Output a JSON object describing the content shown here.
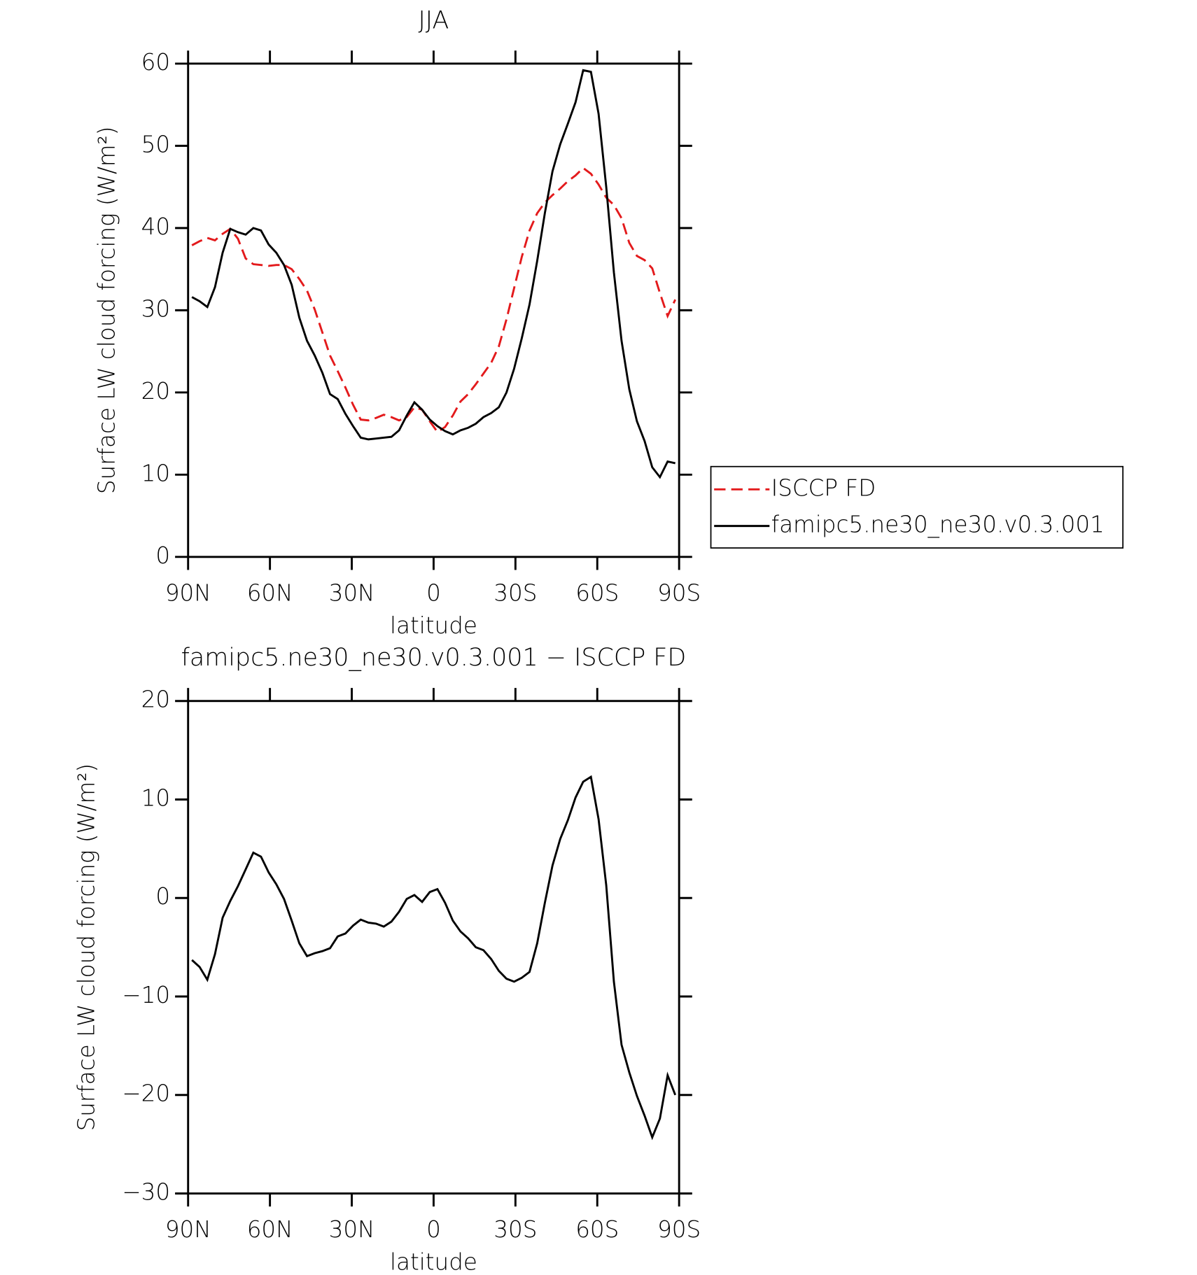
{
  "chart_data": [
    {
      "type": "line",
      "title": "JJA",
      "xlabel": "latitude",
      "ylabel": "Surface LW cloud forcing (W/m²)",
      "x": [
        88.59,
        85.78,
        82.97,
        80.16,
        77.34,
        74.53,
        71.72,
        68.91,
        66.09,
        63.28,
        60.47,
        57.66,
        54.84,
        52.03,
        49.22,
        46.41,
        43.59,
        40.78,
        37.97,
        35.16,
        32.34,
        29.53,
        26.72,
        23.91,
        21.09,
        18.28,
        15.47,
        12.66,
        9.84,
        7.03,
        4.22,
        1.41,
        -1.41,
        -4.22,
        -7.03,
        -9.84,
        -12.66,
        -15.47,
        -18.28,
        -21.09,
        -23.91,
        -26.72,
        -29.53,
        -32.34,
        -35.16,
        -37.97,
        -40.78,
        -43.59,
        -46.41,
        -49.22,
        -52.03,
        -54.84,
        -57.66,
        -60.47,
        -63.28,
        -66.09,
        -68.91,
        -71.72,
        -74.53,
        -77.34,
        -80.16,
        -82.97,
        -85.78,
        -88.59
      ],
      "series": [
        {
          "name": "ISCCP FD",
          "color": "#e31a1c",
          "dashed": true,
          "values": [
            37.9,
            38.4,
            38.8,
            38.5,
            39.3,
            39.9,
            38.7,
            36.3,
            35.6,
            35.5,
            35.4,
            35.5,
            35.5,
            35.0,
            33.8,
            32.4,
            30.1,
            27.3,
            24.5,
            22.6,
            20.6,
            18.5,
            16.7,
            16.6,
            16.9,
            17.3,
            17.0,
            16.6,
            17.0,
            18.2,
            17.9,
            16.5,
            15.2,
            15.8,
            17.2,
            18.9,
            19.8,
            21.0,
            22.3,
            23.6,
            25.6,
            28.9,
            32.7,
            36.5,
            39.7,
            41.8,
            43.1,
            44.0,
            44.8,
            45.7,
            46.4,
            47.3,
            46.6,
            45.3,
            43.7,
            42.8,
            41.2,
            38.2,
            36.6,
            36.1,
            35.1,
            32.1,
            29.3,
            31.3
          ]
        },
        {
          "name": "famipc5.ne30_ne30.v0.3.001",
          "color": "#000000",
          "dashed": false,
          "values": [
            31.6,
            31.1,
            30.4,
            32.8,
            37.0,
            39.9,
            39.5,
            39.2,
            40.0,
            39.7,
            38.0,
            37.0,
            35.5,
            33.1,
            29.1,
            26.3,
            24.5,
            22.4,
            19.8,
            19.2,
            17.4,
            15.9,
            14.5,
            14.3,
            14.4,
            14.5,
            14.6,
            15.4,
            17.2,
            18.8,
            17.9,
            16.7,
            15.9,
            15.3,
            14.9,
            15.4,
            15.7,
            16.2,
            17.0,
            17.5,
            18.2,
            20.0,
            22.9,
            26.6,
            30.7,
            36.0,
            41.8,
            46.9,
            50.2,
            52.7,
            55.3,
            59.2,
            59.0,
            53.9,
            45.0,
            34.6,
            26.3,
            20.4,
            16.5,
            14.1,
            10.9,
            9.7,
            11.6,
            11.4
          ]
        }
      ],
      "xlim": [
        90,
        -90
      ],
      "xticks": [
        {
          "value": 90,
          "label": "90N"
        },
        {
          "value": 60,
          "label": "60N"
        },
        {
          "value": 30,
          "label": "30N"
        },
        0,
        {
          "value": -30,
          "label": "30S"
        },
        {
          "value": -60,
          "label": "60S"
        },
        {
          "value": -90,
          "label": "90S"
        }
      ],
      "ylim": [
        0,
        60
      ],
      "yticks": [
        0,
        10,
        20,
        30,
        40,
        50,
        60
      ],
      "legend": "right"
    },
    {
      "type": "line",
      "title": "famipc5.ne30_ne30.v0.3.001 − ISCCP FD",
      "xlabel": "latitude",
      "ylabel": "Surface LW cloud forcing (W/m²)",
      "x": [
        88.59,
        85.78,
        82.97,
        80.16,
        77.34,
        74.53,
        71.72,
        68.91,
        66.09,
        63.28,
        60.47,
        57.66,
        54.84,
        52.03,
        49.22,
        46.41,
        43.59,
        40.78,
        37.97,
        35.16,
        32.34,
        29.53,
        26.72,
        23.91,
        21.09,
        18.28,
        15.47,
        12.66,
        9.84,
        7.03,
        4.22,
        1.41,
        -1.41,
        -4.22,
        -7.03,
        -9.84,
        -12.66,
        -15.47,
        -18.28,
        -21.09,
        -23.91,
        -26.72,
        -29.53,
        -32.34,
        -35.16,
        -37.97,
        -40.78,
        -43.59,
        -46.41,
        -49.22,
        -52.03,
        -54.84,
        -57.66,
        -60.47,
        -63.28,
        -66.09,
        -68.91,
        -71.72,
        -74.53,
        -77.34,
        -80.16,
        -82.97,
        -85.78,
        -88.59
      ],
      "series": [
        {
          "color": "#000000",
          "dashed": false,
          "values": [
            -6.3,
            -7.0,
            -8.3,
            -5.7,
            -2.0,
            -0.3,
            1.2,
            2.9,
            4.6,
            4.2,
            2.6,
            1.4,
            -0.1,
            -2.3,
            -4.6,
            -5.9,
            -5.6,
            -5.4,
            -5.1,
            -3.9,
            -3.6,
            -2.8,
            -2.2,
            -2.5,
            -2.6,
            -2.9,
            -2.4,
            -1.4,
            -0.1,
            0.3,
            -0.4,
            0.6,
            0.9,
            -0.5,
            -2.3,
            -3.4,
            -4.1,
            -5.0,
            -5.3,
            -6.2,
            -7.4,
            -8.2,
            -8.5,
            -8.1,
            -7.5,
            -4.6,
            -0.5,
            3.3,
            6.0,
            7.9,
            10.2,
            11.8,
            12.3,
            8.0,
            1.3,
            -8.5,
            -14.9,
            -17.7,
            -20.1,
            -22.1,
            -24.3,
            -22.4,
            -18.0,
            -20.0
          ]
        }
      ],
      "xlim": [
        90,
        -90
      ],
      "xticks": [
        {
          "value": 90,
          "label": "90N"
        },
        {
          "value": 60,
          "label": "60N"
        },
        {
          "value": 30,
          "label": "30N"
        },
        0,
        {
          "value": -30,
          "label": "30S"
        },
        {
          "value": -60,
          "label": "60S"
        },
        {
          "value": -90,
          "label": "90S"
        }
      ],
      "ylim": [
        -30,
        20
      ],
      "yticks": [
        {
          "value": -30,
          "label": "−30"
        },
        {
          "value": -20,
          "label": "−20"
        },
        {
          "value": -10,
          "label": "−10"
        },
        0,
        10,
        20
      ]
    }
  ]
}
